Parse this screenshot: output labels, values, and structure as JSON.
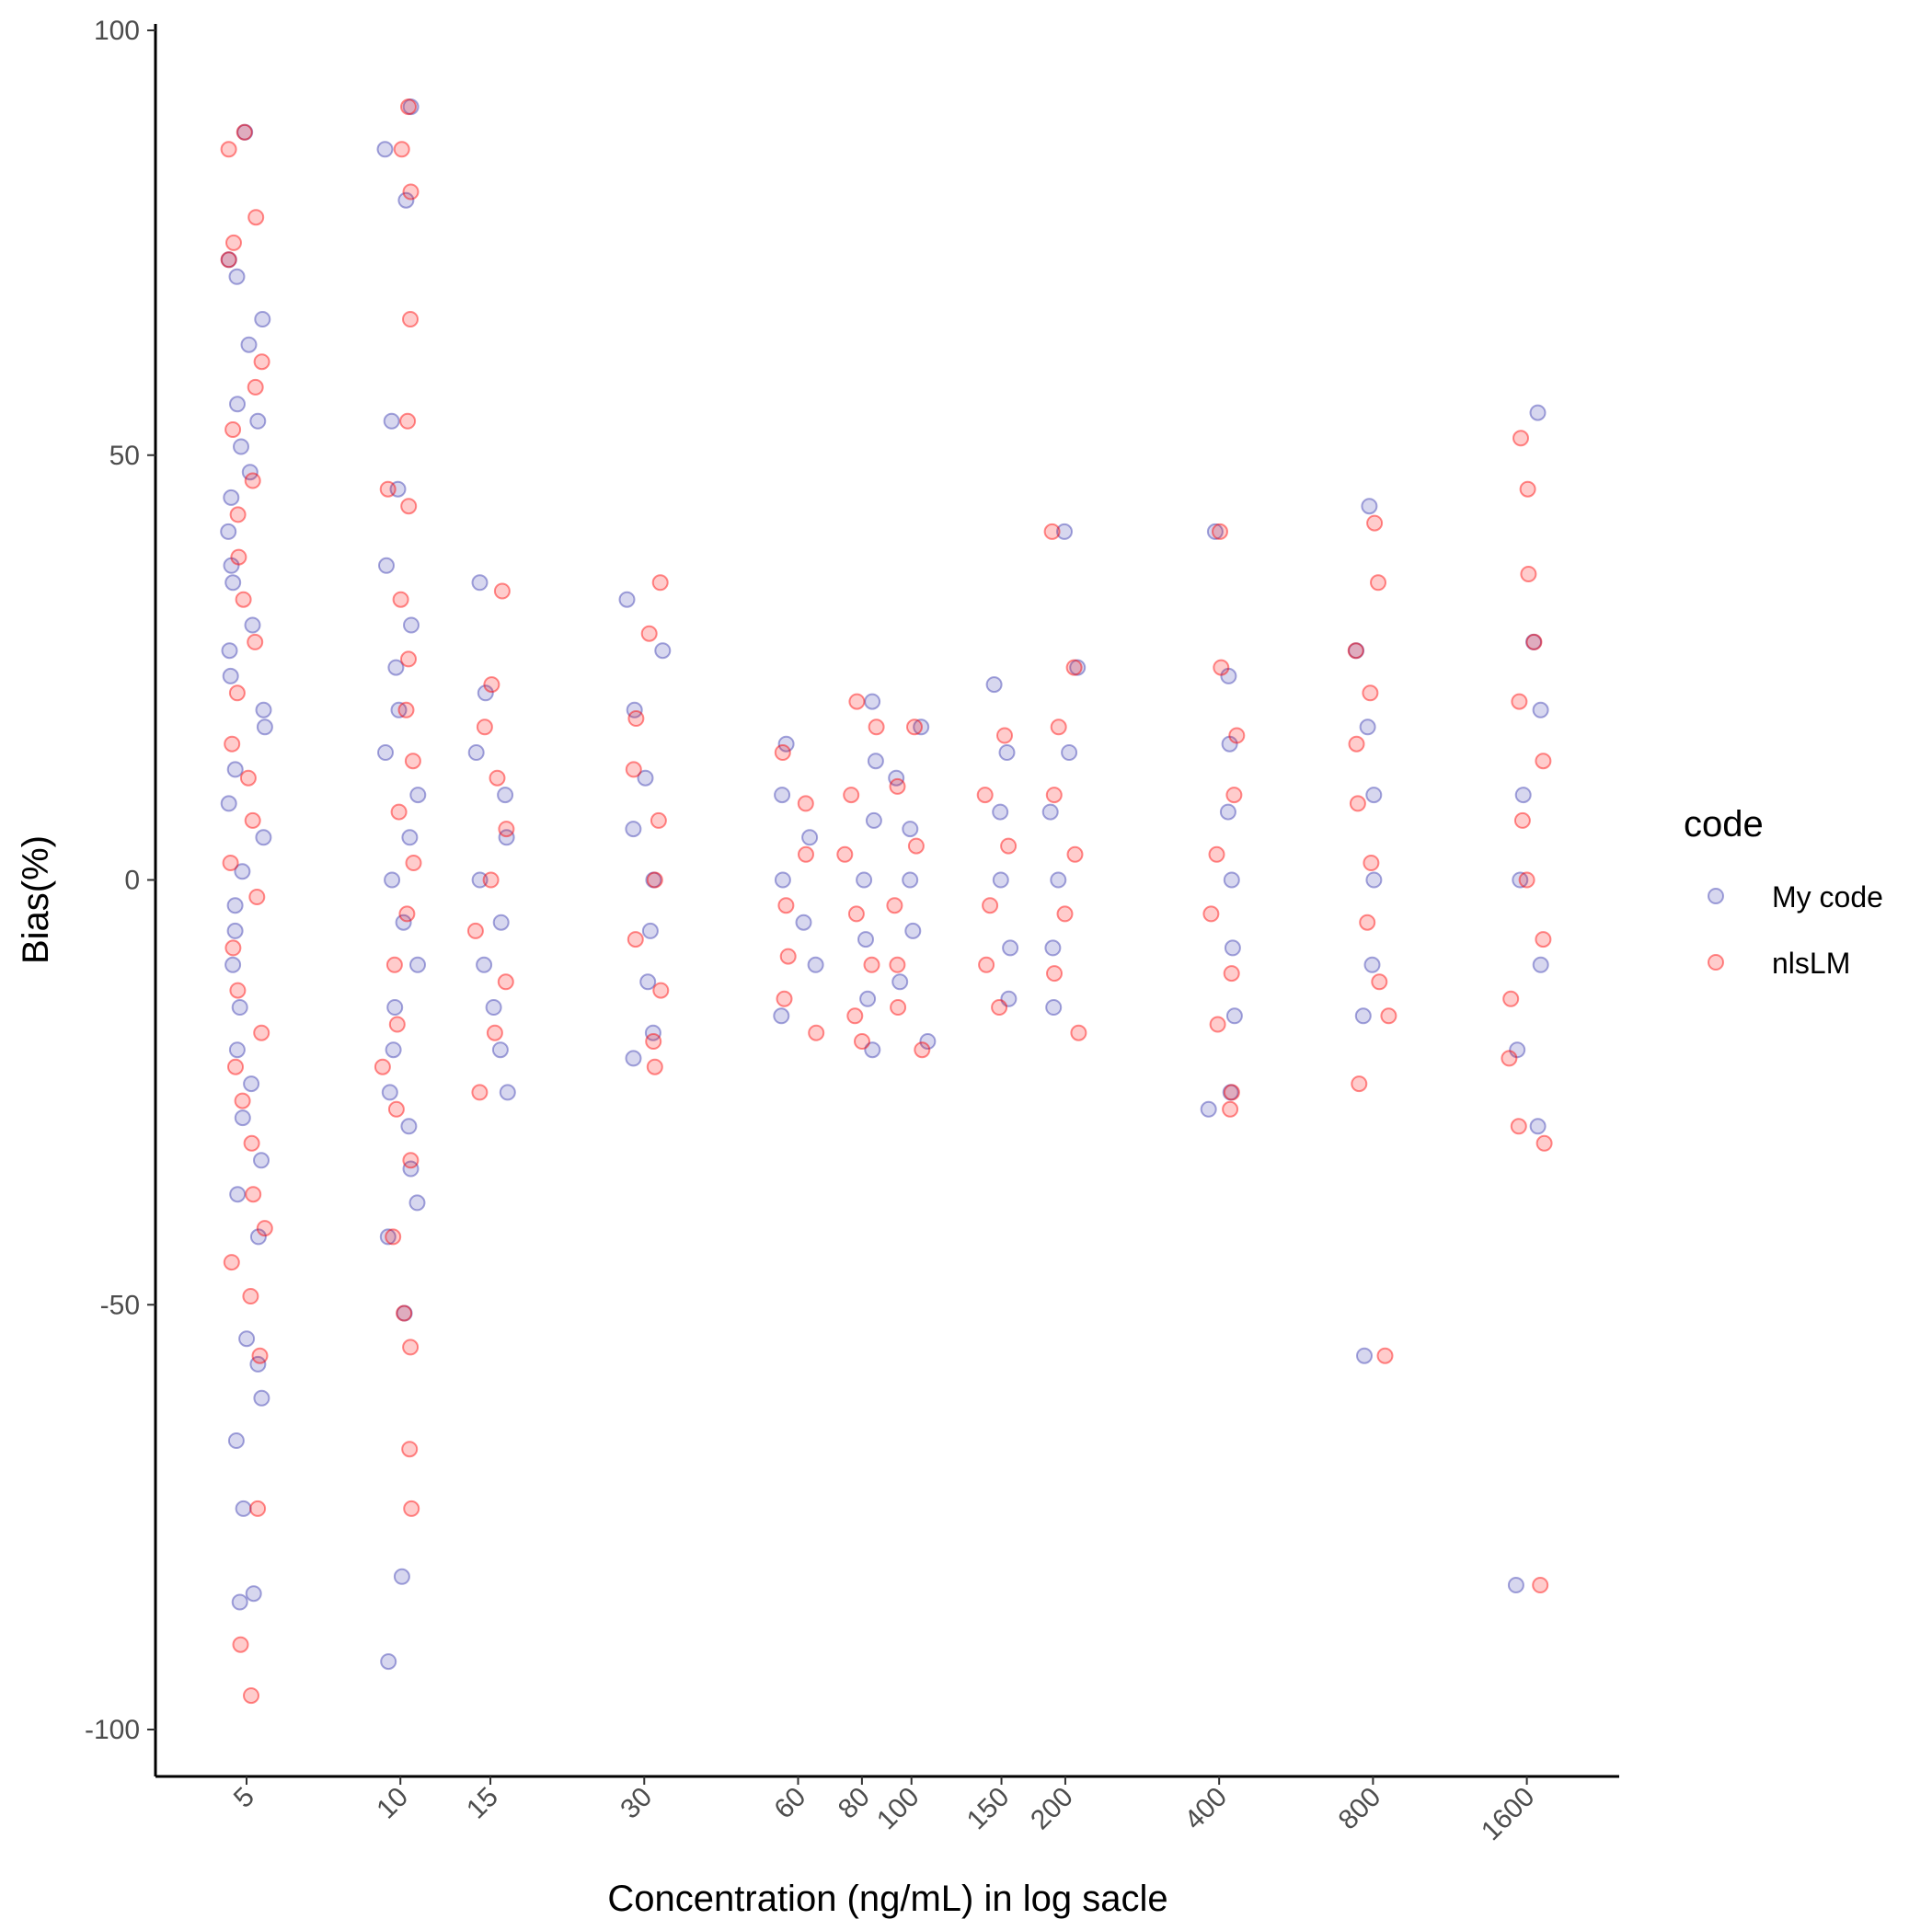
{
  "chart_data": {
    "type": "scatter",
    "xlabel": "Concentration (ng/mL) in log sacle",
    "ylabel": "Bias(%)",
    "x_scale": "log",
    "ylim": [
      -106,
      101
    ],
    "x_ticks": [
      5,
      10,
      15,
      30,
      60,
      80,
      100,
      150,
      200,
      400,
      800,
      1600
    ],
    "x_tick_labels": [
      "5",
      "10",
      "15",
      "30",
      "60",
      "80",
      "100",
      "150",
      "200",
      "400",
      "800",
      "1600"
    ],
    "y_ticks": [
      -100,
      -50,
      0,
      50,
      100
    ],
    "y_tick_labels": [
      "-100",
      "-50",
      "0",
      "50",
      "100"
    ],
    "grid": false,
    "legend": {
      "title": "code",
      "position": "right",
      "entries": [
        "My code",
        "nlsLM"
      ]
    },
    "colors": {
      "My code": "#3838b0",
      "nlsLM": "#ff0000"
    },
    "point_opacity": 0.2,
    "jitter": true,
    "series": [
      {
        "name": "My code",
        "points": [
          [
            5,
            88
          ],
          [
            5,
            73
          ],
          [
            5,
            71
          ],
          [
            5,
            66
          ],
          [
            5,
            63
          ],
          [
            5,
            56
          ],
          [
            5,
            54
          ],
          [
            5,
            51
          ],
          [
            5,
            48
          ],
          [
            5,
            45
          ],
          [
            5,
            41
          ],
          [
            5,
            37
          ],
          [
            5,
            35
          ],
          [
            5,
            30
          ],
          [
            5,
            27
          ],
          [
            5,
            24
          ],
          [
            5,
            20
          ],
          [
            5,
            18
          ],
          [
            5,
            13
          ],
          [
            5,
            9
          ],
          [
            5,
            5
          ],
          [
            5,
            1
          ],
          [
            5,
            -3
          ],
          [
            5,
            -6
          ],
          [
            5,
            -10
          ],
          [
            5,
            -15
          ],
          [
            5,
            -20
          ],
          [
            5,
            -24
          ],
          [
            5,
            -28
          ],
          [
            5,
            -33
          ],
          [
            5,
            -37
          ],
          [
            5,
            -42
          ],
          [
            5,
            -54
          ],
          [
            5,
            -57
          ],
          [
            5,
            -61
          ],
          [
            5,
            -66
          ],
          [
            5,
            -74
          ],
          [
            5,
            -84
          ],
          [
            5,
            -85
          ],
          [
            10,
            91
          ],
          [
            10,
            86
          ],
          [
            10,
            80
          ],
          [
            10,
            54
          ],
          [
            10,
            46
          ],
          [
            10,
            37
          ],
          [
            10,
            30
          ],
          [
            10,
            25
          ],
          [
            10,
            20
          ],
          [
            10,
            15
          ],
          [
            10,
            10
          ],
          [
            10,
            5
          ],
          [
            10,
            0
          ],
          [
            10,
            -5
          ],
          [
            10,
            -10
          ],
          [
            10,
            -15
          ],
          [
            10,
            -20
          ],
          [
            10,
            -25
          ],
          [
            10,
            -29
          ],
          [
            10,
            -34
          ],
          [
            10,
            -38
          ],
          [
            10,
            -42
          ],
          [
            10,
            -51
          ],
          [
            10,
            -82
          ],
          [
            10,
            -92
          ],
          [
            15,
            35
          ],
          [
            15,
            22
          ],
          [
            15,
            15
          ],
          [
            15,
            10
          ],
          [
            15,
            5
          ],
          [
            15,
            0
          ],
          [
            15,
            -5
          ],
          [
            15,
            -10
          ],
          [
            15,
            -15
          ],
          [
            15,
            -20
          ],
          [
            15,
            -25
          ],
          [
            30,
            33
          ],
          [
            30,
            27
          ],
          [
            30,
            20
          ],
          [
            30,
            12
          ],
          [
            30,
            6
          ],
          [
            30,
            0
          ],
          [
            30,
            -6
          ],
          [
            30,
            -12
          ],
          [
            30,
            -18
          ],
          [
            30,
            -21
          ],
          [
            60,
            16
          ],
          [
            60,
            10
          ],
          [
            60,
            5
          ],
          [
            60,
            0
          ],
          [
            60,
            -5
          ],
          [
            60,
            -10
          ],
          [
            60,
            -16
          ],
          [
            80,
            21
          ],
          [
            80,
            14
          ],
          [
            80,
            7
          ],
          [
            80,
            0
          ],
          [
            80,
            -7
          ],
          [
            80,
            -14
          ],
          [
            80,
            -20
          ],
          [
            100,
            18
          ],
          [
            100,
            12
          ],
          [
            100,
            6
          ],
          [
            100,
            0
          ],
          [
            100,
            -6
          ],
          [
            100,
            -12
          ],
          [
            100,
            -19
          ],
          [
            150,
            23
          ],
          [
            150,
            15
          ],
          [
            150,
            8
          ],
          [
            150,
            0
          ],
          [
            150,
            -8
          ],
          [
            150,
            -14
          ],
          [
            200,
            41
          ],
          [
            200,
            25
          ],
          [
            200,
            15
          ],
          [
            200,
            8
          ],
          [
            200,
            0
          ],
          [
            200,
            -8
          ],
          [
            200,
            -15
          ],
          [
            400,
            41
          ],
          [
            400,
            24
          ],
          [
            400,
            16
          ],
          [
            400,
            8
          ],
          [
            400,
            0
          ],
          [
            400,
            -8
          ],
          [
            400,
            -16
          ],
          [
            400,
            -25
          ],
          [
            400,
            -27
          ],
          [
            800,
            44
          ],
          [
            800,
            27
          ],
          [
            800,
            18
          ],
          [
            800,
            10
          ],
          [
            800,
            0
          ],
          [
            800,
            -10
          ],
          [
            800,
            -16
          ],
          [
            800,
            -56
          ],
          [
            1600,
            55
          ],
          [
            1600,
            28
          ],
          [
            1600,
            20
          ],
          [
            1600,
            10
          ],
          [
            1600,
            0
          ],
          [
            1600,
            -10
          ],
          [
            1600,
            -20
          ],
          [
            1600,
            -29
          ],
          [
            1600,
            -83
          ]
        ]
      },
      {
        "name": "nlsLM",
        "points": [
          [
            5,
            88
          ],
          [
            5,
            86
          ],
          [
            5,
            78
          ],
          [
            5,
            75
          ],
          [
            5,
            73
          ],
          [
            5,
            61
          ],
          [
            5,
            58
          ],
          [
            5,
            53
          ],
          [
            5,
            47
          ],
          [
            5,
            43
          ],
          [
            5,
            38
          ],
          [
            5,
            33
          ],
          [
            5,
            28
          ],
          [
            5,
            22
          ],
          [
            5,
            16
          ],
          [
            5,
            12
          ],
          [
            5,
            7
          ],
          [
            5,
            2
          ],
          [
            5,
            -2
          ],
          [
            5,
            -8
          ],
          [
            5,
            -13
          ],
          [
            5,
            -18
          ],
          [
            5,
            -22
          ],
          [
            5,
            -26
          ],
          [
            5,
            -31
          ],
          [
            5,
            -37
          ],
          [
            5,
            -41
          ],
          [
            5,
            -45
          ],
          [
            5,
            -49
          ],
          [
            5,
            -56
          ],
          [
            5,
            -74
          ],
          [
            5,
            -90
          ],
          [
            5,
            -96
          ],
          [
            10,
            91
          ],
          [
            10,
            86
          ],
          [
            10,
            81
          ],
          [
            10,
            66
          ],
          [
            10,
            54
          ],
          [
            10,
            46
          ],
          [
            10,
            44
          ],
          [
            10,
            33
          ],
          [
            10,
            26
          ],
          [
            10,
            20
          ],
          [
            10,
            14
          ],
          [
            10,
            8
          ],
          [
            10,
            2
          ],
          [
            10,
            -4
          ],
          [
            10,
            -10
          ],
          [
            10,
            -17
          ],
          [
            10,
            -22
          ],
          [
            10,
            -27
          ],
          [
            10,
            -33
          ],
          [
            10,
            -42
          ],
          [
            10,
            -51
          ],
          [
            10,
            -55
          ],
          [
            10,
            -67
          ],
          [
            10,
            -74
          ],
          [
            15,
            34
          ],
          [
            15,
            23
          ],
          [
            15,
            18
          ],
          [
            15,
            12
          ],
          [
            15,
            6
          ],
          [
            15,
            0
          ],
          [
            15,
            -6
          ],
          [
            15,
            -12
          ],
          [
            15,
            -18
          ],
          [
            15,
            -25
          ],
          [
            30,
            35
          ],
          [
            30,
            29
          ],
          [
            30,
            19
          ],
          [
            30,
            13
          ],
          [
            30,
            7
          ],
          [
            30,
            0
          ],
          [
            30,
            -7
          ],
          [
            30,
            -13
          ],
          [
            30,
            -19
          ],
          [
            30,
            -22
          ],
          [
            60,
            15
          ],
          [
            60,
            9
          ],
          [
            60,
            3
          ],
          [
            60,
            -3
          ],
          [
            60,
            -9
          ],
          [
            60,
            -14
          ],
          [
            60,
            -18
          ],
          [
            80,
            21
          ],
          [
            80,
            18
          ],
          [
            80,
            10
          ],
          [
            80,
            3
          ],
          [
            80,
            -4
          ],
          [
            80,
            -10
          ],
          [
            80,
            -16
          ],
          [
            80,
            -19
          ],
          [
            100,
            18
          ],
          [
            100,
            11
          ],
          [
            100,
            4
          ],
          [
            100,
            -3
          ],
          [
            100,
            -10
          ],
          [
            100,
            -15
          ],
          [
            100,
            -20
          ],
          [
            150,
            17
          ],
          [
            150,
            10
          ],
          [
            150,
            4
          ],
          [
            150,
            -3
          ],
          [
            150,
            -10
          ],
          [
            150,
            -15
          ],
          [
            200,
            41
          ],
          [
            200,
            25
          ],
          [
            200,
            18
          ],
          [
            200,
            10
          ],
          [
            200,
            3
          ],
          [
            200,
            -4
          ],
          [
            200,
            -11
          ],
          [
            200,
            -18
          ],
          [
            400,
            41
          ],
          [
            400,
            25
          ],
          [
            400,
            17
          ],
          [
            400,
            10
          ],
          [
            400,
            3
          ],
          [
            400,
            -4
          ],
          [
            400,
            -11
          ],
          [
            400,
            -17
          ],
          [
            400,
            -25
          ],
          [
            400,
            -27
          ],
          [
            800,
            42
          ],
          [
            800,
            35
          ],
          [
            800,
            27
          ],
          [
            800,
            22
          ],
          [
            800,
            16
          ],
          [
            800,
            9
          ],
          [
            800,
            2
          ],
          [
            800,
            -5
          ],
          [
            800,
            -12
          ],
          [
            800,
            -16
          ],
          [
            800,
            -24
          ],
          [
            800,
            -56
          ],
          [
            1600,
            52
          ],
          [
            1600,
            46
          ],
          [
            1600,
            36
          ],
          [
            1600,
            28
          ],
          [
            1600,
            21
          ],
          [
            1600,
            14
          ],
          [
            1600,
            7
          ],
          [
            1600,
            0
          ],
          [
            1600,
            -7
          ],
          [
            1600,
            -14
          ],
          [
            1600,
            -21
          ],
          [
            1600,
            -29
          ],
          [
            1600,
            -31
          ],
          [
            1600,
            -83
          ]
        ]
      }
    ]
  }
}
